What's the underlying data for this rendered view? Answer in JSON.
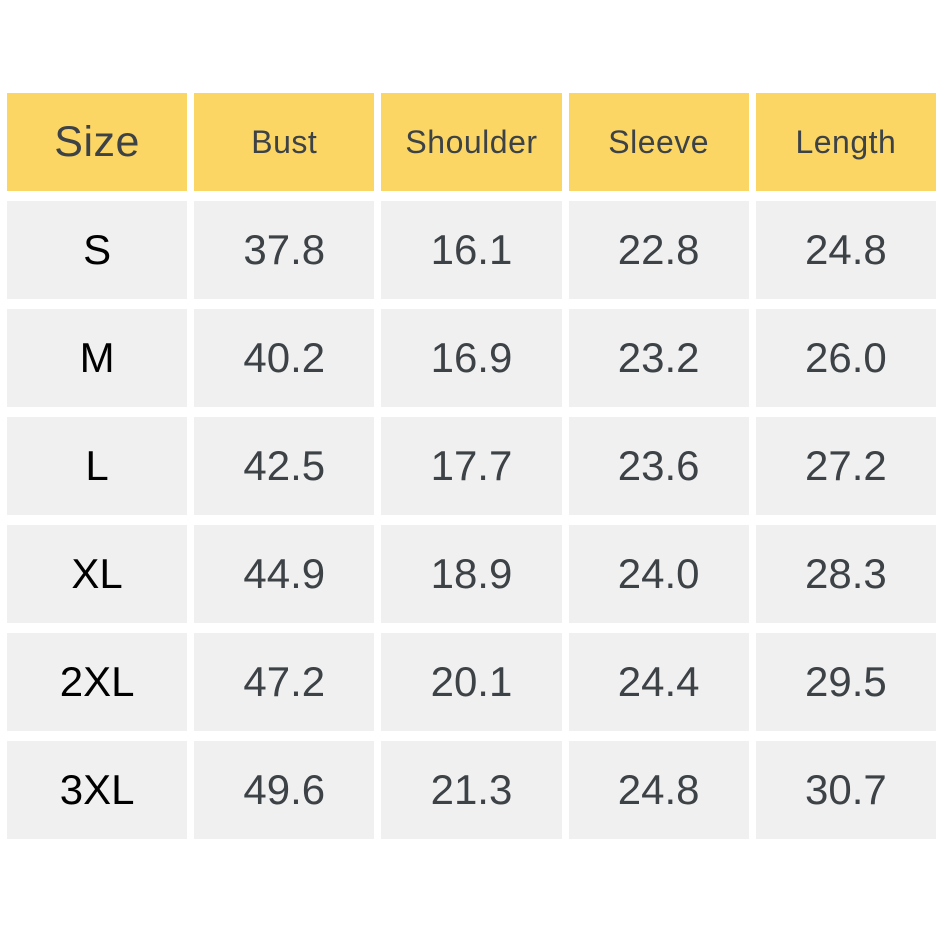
{
  "colors": {
    "page_bg": "#ffffff",
    "header_bg": "#fbd664",
    "cell_bg": "#f0f0f0",
    "header_text": "#3d4247",
    "value_text": "#3d4247",
    "size_label_text": "#000000"
  },
  "table": {
    "headers": [
      "Size",
      "Bust",
      "Shoulder",
      "Sleeve",
      "Length"
    ],
    "rows": [
      [
        "S",
        "37.8",
        "16.1",
        "22.8",
        "24.8"
      ],
      [
        "M",
        "40.2",
        "16.9",
        "23.2",
        "26.0"
      ],
      [
        "L",
        "42.5",
        "17.7",
        "23.6",
        "27.2"
      ],
      [
        "XL",
        "44.9",
        "18.9",
        "24.0",
        "28.3"
      ],
      [
        "2XL",
        "47.2",
        "20.1",
        "24.4",
        "29.5"
      ],
      [
        "3XL",
        "49.6",
        "21.3",
        "24.8",
        "30.7"
      ]
    ]
  },
  "chart_data": {
    "type": "table",
    "title": "",
    "columns": [
      "Size",
      "Bust",
      "Shoulder",
      "Sleeve",
      "Length"
    ],
    "rows": [
      {
        "size": "S",
        "bust": 37.8,
        "shoulder": 16.1,
        "sleeve": 22.8,
        "length": 24.8
      },
      {
        "size": "M",
        "bust": 40.2,
        "shoulder": 16.9,
        "sleeve": 23.2,
        "length": 26.0
      },
      {
        "size": "L",
        "bust": 42.5,
        "shoulder": 17.7,
        "sleeve": 23.6,
        "length": 27.2
      },
      {
        "size": "XL",
        "bust": 44.9,
        "shoulder": 18.9,
        "sleeve": 24.0,
        "length": 28.3
      },
      {
        "size": "2XL",
        "bust": 47.2,
        "shoulder": 20.1,
        "sleeve": 24.4,
        "length": 29.5
      },
      {
        "size": "3XL",
        "bust": 49.6,
        "shoulder": 21.3,
        "sleeve": 24.8,
        "length": 30.7
      }
    ]
  }
}
